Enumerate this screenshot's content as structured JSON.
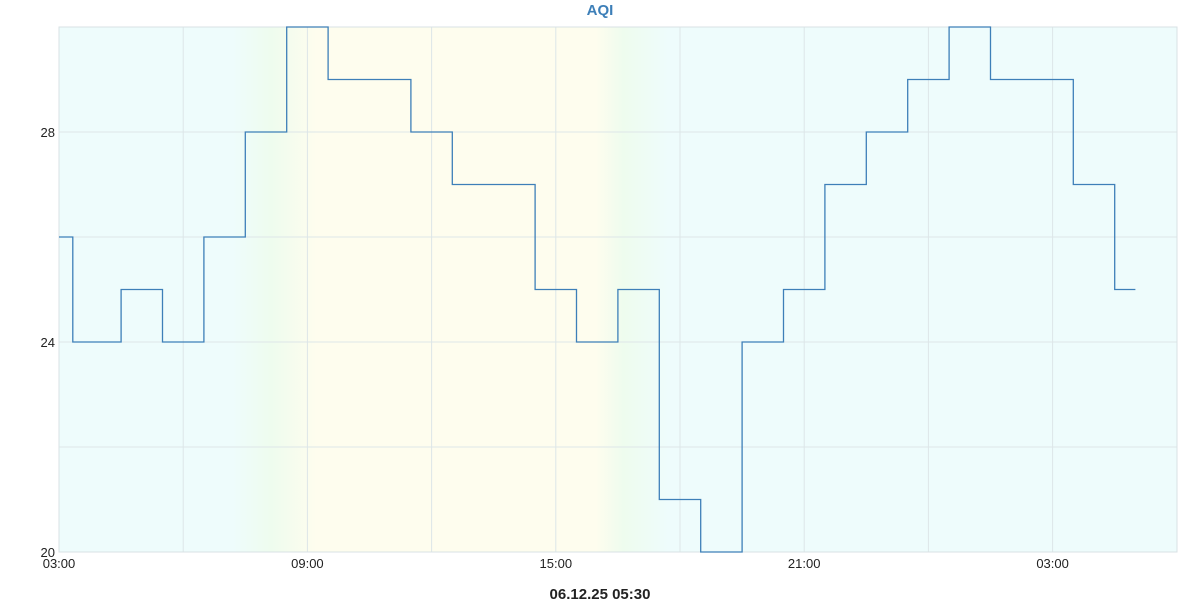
{
  "chart_data": {
    "type": "line",
    "step": true,
    "title": "AQI",
    "footer": "06.12.25 05:30",
    "xlabel": "",
    "ylabel": "",
    "x_tick_labels": [
      "03:00",
      "09:00",
      "15:00",
      "21:00",
      "03:00"
    ],
    "y_tick_labels": [
      "20",
      "24",
      "28"
    ],
    "ylim": [
      20,
      30
    ],
    "grid": true,
    "legend": "none",
    "line_color": "#3d7fb8",
    "background_colors": {
      "default": "#eefcfc",
      "day": "#fefdee",
      "transition": "#eefcee"
    },
    "series": [
      {
        "x": [
          "03:00",
          "03:20",
          "04:00",
          "04:30",
          "05:00",
          "05:30",
          "06:00",
          "06:30",
          "07:00",
          "07:30",
          "08:00",
          "08:30",
          "09:00",
          "09:30",
          "10:00",
          "10:30",
          "11:00",
          "11:30",
          "12:00",
          "12:30",
          "13:00",
          "13:30",
          "14:00",
          "14:30",
          "15:00",
          "15:30",
          "16:00",
          "16:30",
          "17:00",
          "17:30",
          "18:00",
          "18:30",
          "19:00",
          "19:30",
          "20:00",
          "20:30",
          "21:00",
          "21:30",
          "22:00",
          "22:30",
          "23:00",
          "23:30",
          "00:00",
          "00:30",
          "01:00",
          "01:30",
          "02:00",
          "02:30",
          "03:00",
          "03:30",
          "04:00",
          "04:30",
          "05:00"
        ],
        "values": [
          26,
          24,
          24,
          25,
          25,
          24,
          24,
          26,
          26,
          28,
          28,
          30,
          30,
          29,
          29,
          29,
          29,
          28,
          28,
          27,
          27,
          27,
          27,
          25,
          25,
          24,
          24,
          25,
          25,
          21,
          21,
          20,
          20,
          24,
          24,
          25,
          25,
          27,
          27,
          28,
          28,
          29,
          29,
          30,
          30,
          29,
          29,
          29,
          29,
          27,
          27,
          25,
          25
        ]
      }
    ]
  }
}
